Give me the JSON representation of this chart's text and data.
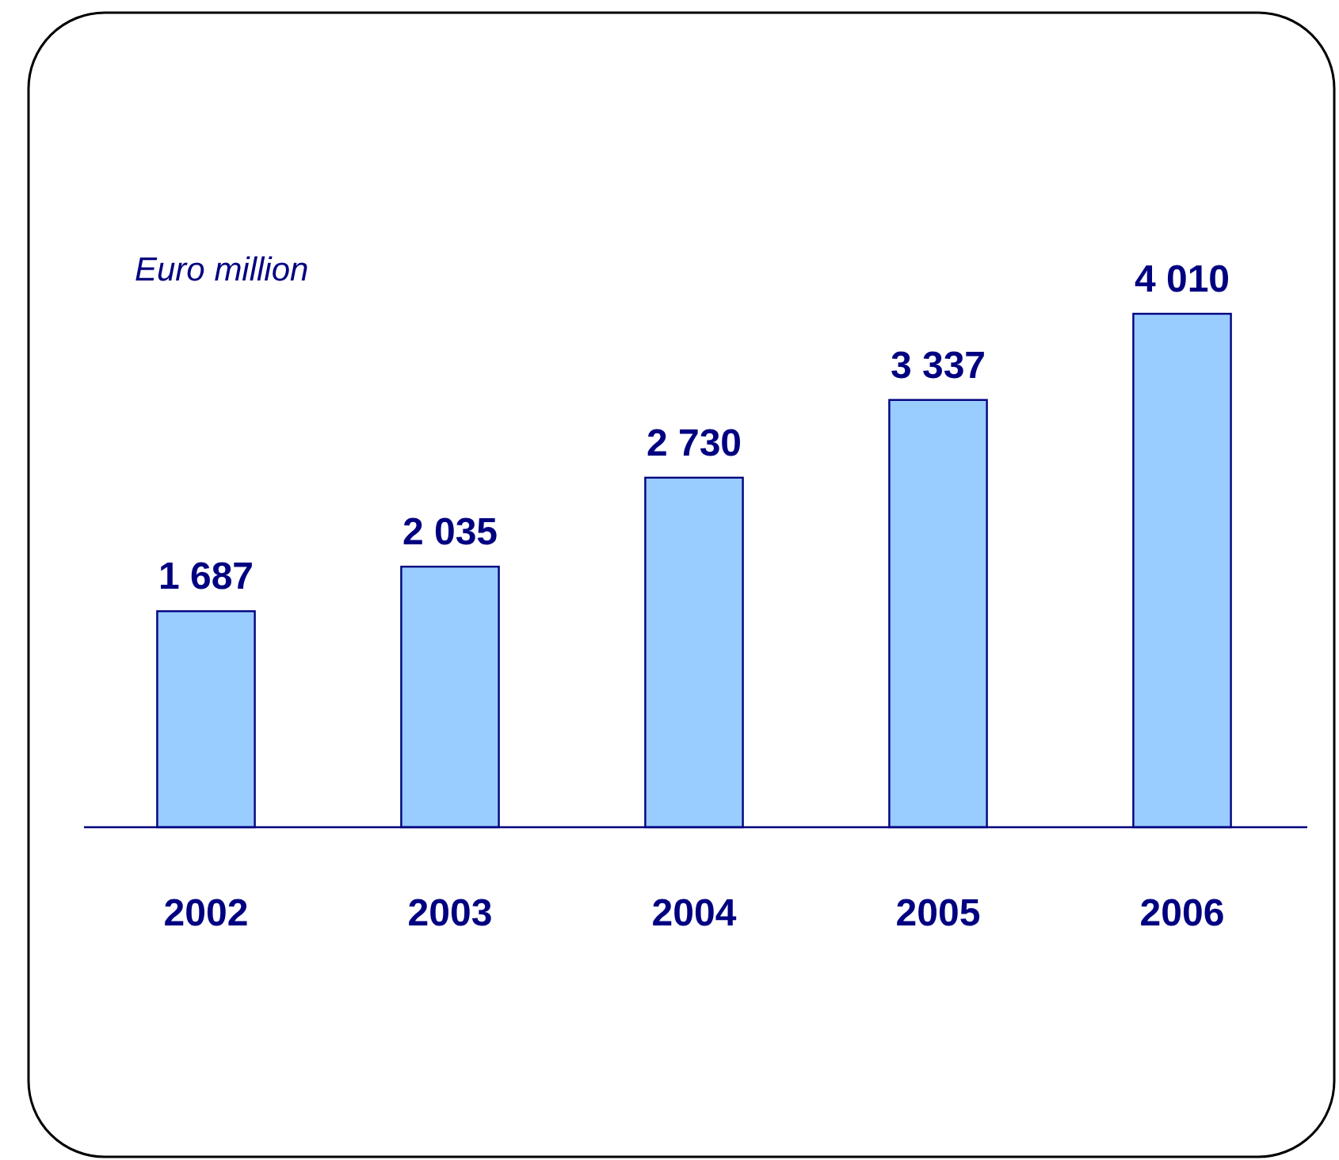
{
  "chart_data": {
    "type": "bar",
    "categories": [
      "2002",
      "2003",
      "2004",
      "2005",
      "2006"
    ],
    "values": [
      1687,
      2035,
      2730,
      3337,
      4010
    ],
    "value_labels": [
      "1 687",
      "2 035",
      "2 730",
      "3 337",
      "4 010"
    ],
    "color": "#99ccff",
    "annotations": [
      "Euro million"
    ],
    "grid": false,
    "legend": false
  }
}
